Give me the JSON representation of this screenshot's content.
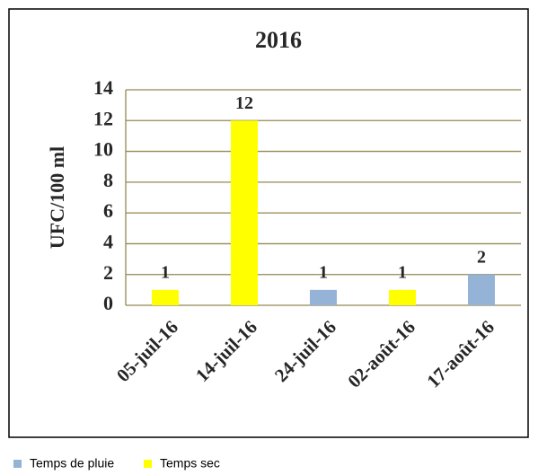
{
  "chart_data": {
    "type": "bar",
    "title": "2016",
    "y_label": "UFC/100 ml",
    "categories": [
      "05-juil-16",
      "14-juil-16",
      "24-juil-16",
      "02-août-16",
      "17-août-16"
    ],
    "series": [
      {
        "name": "Temps de pluie",
        "color": "#95b3d7",
        "values": [
          null,
          null,
          1,
          null,
          2
        ]
      },
      {
        "name": "Temps sec",
        "color": "#ffff00",
        "values": [
          1,
          12,
          null,
          1,
          null
        ]
      }
    ],
    "ylim": [
      0,
      14
    ],
    "yticks": [
      0,
      2,
      4,
      6,
      8,
      10,
      12,
      14
    ],
    "grid": true,
    "grid_color": "#938953",
    "legend": "bottom-left"
  }
}
